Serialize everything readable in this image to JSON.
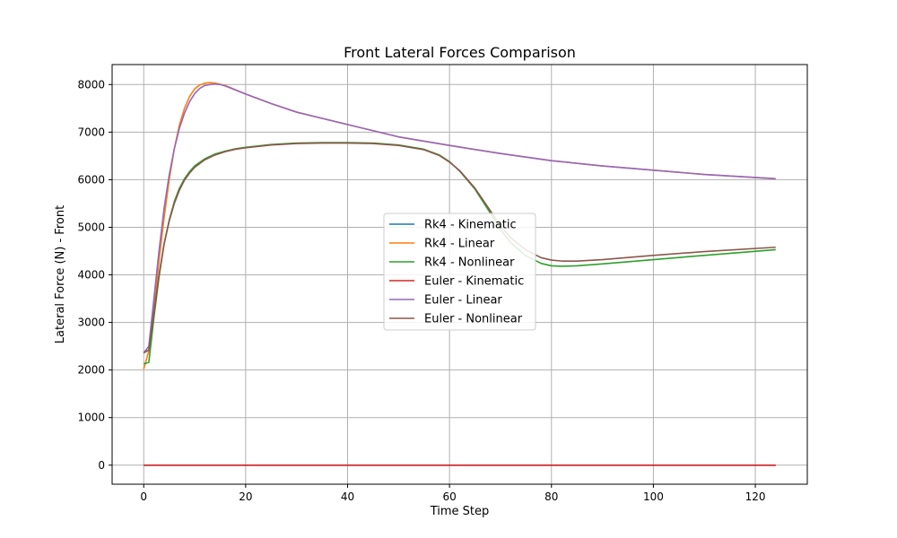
{
  "chart_data": {
    "type": "line",
    "title": "Front Lateral Forces Comparison",
    "xlabel": "Time Step",
    "ylabel": "Lateral Force (N) - Front",
    "xlim": [
      -6.2,
      130.2
    ],
    "ylim": [
      -400,
      8420
    ],
    "xticks": [
      0,
      20,
      40,
      60,
      80,
      100,
      120
    ],
    "yticks": [
      0,
      1000,
      2000,
      3000,
      4000,
      5000,
      6000,
      7000,
      8000
    ],
    "grid": true,
    "legend_position": "center",
    "series": [
      {
        "name": "Rk4 - Kinematic",
        "color": "#1f77b4",
        "x": [
          0,
          124
        ],
        "y": [
          0,
          0
        ]
      },
      {
        "name": "Rk4 - Linear",
        "color": "#ff7f0e",
        "x": [
          0,
          1,
          2,
          3,
          4,
          5,
          6,
          7,
          8,
          9,
          10,
          11,
          12,
          13,
          14,
          16,
          20,
          25,
          30,
          40,
          50,
          60,
          70,
          80,
          90,
          100,
          110,
          124
        ],
        "y": [
          2020,
          2400,
          3300,
          4300,
          5200,
          6000,
          6650,
          7150,
          7500,
          7750,
          7910,
          7990,
          8030,
          8040,
          8030,
          7980,
          7800,
          7600,
          7420,
          7160,
          6900,
          6720,
          6550,
          6400,
          6290,
          6200,
          6110,
          6020
        ]
      },
      {
        "name": "Rk4 - Nonlinear",
        "color": "#2ca02c",
        "x": [
          0,
          1,
          2,
          3,
          4,
          5,
          6,
          7,
          8,
          9,
          10,
          12,
          14,
          16,
          18,
          20,
          25,
          30,
          35,
          40,
          45,
          50,
          55,
          58,
          60,
          62,
          65,
          68,
          70,
          72,
          75,
          78,
          80,
          82,
          85,
          90,
          100,
          110,
          124
        ],
        "y": [
          2130,
          2160,
          3100,
          3950,
          4650,
          5150,
          5540,
          5820,
          6020,
          6170,
          6290,
          6440,
          6540,
          6600,
          6650,
          6680,
          6740,
          6770,
          6780,
          6780,
          6770,
          6730,
          6640,
          6520,
          6380,
          6180,
          5800,
          5300,
          4950,
          4680,
          4400,
          4240,
          4190,
          4180,
          4190,
          4230,
          4320,
          4410,
          4530
        ]
      },
      {
        "name": "Euler - Kinematic",
        "color": "#d62728",
        "x": [
          0,
          124
        ],
        "y": [
          0,
          0
        ]
      },
      {
        "name": "Euler - Linear",
        "color": "#9467bd",
        "x": [
          0,
          1,
          2,
          3,
          4,
          5,
          6,
          7,
          8,
          9,
          10,
          11,
          12,
          13,
          14,
          15,
          16,
          20,
          25,
          30,
          40,
          50,
          60,
          70,
          80,
          90,
          100,
          110,
          124
        ],
        "y": [
          2360,
          2500,
          3500,
          4500,
          5400,
          6100,
          6650,
          7080,
          7400,
          7640,
          7810,
          7920,
          7980,
          8000,
          8010,
          8000,
          7970,
          7800,
          7600,
          7420,
          7160,
          6900,
          6720,
          6550,
          6400,
          6290,
          6200,
          6110,
          6020
        ]
      },
      {
        "name": "Euler - Nonlinear",
        "color": "#8c564b",
        "x": [
          0,
          1,
          2,
          3,
          4,
          5,
          6,
          7,
          8,
          9,
          10,
          12,
          14,
          16,
          18,
          20,
          25,
          30,
          35,
          40,
          45,
          50,
          55,
          58,
          60,
          62,
          65,
          68,
          70,
          72,
          75,
          78,
          80,
          82,
          85,
          90,
          100,
          110,
          124
        ],
        "y": [
          2360,
          2420,
          3200,
          4000,
          4650,
          5130,
          5500,
          5780,
          5990,
          6140,
          6260,
          6420,
          6520,
          6590,
          6640,
          6670,
          6730,
          6760,
          6770,
          6770,
          6760,
          6720,
          6630,
          6510,
          6370,
          6190,
          5820,
          5350,
          5030,
          4780,
          4520,
          4360,
          4310,
          4290,
          4290,
          4320,
          4410,
          4490,
          4580
        ]
      }
    ]
  }
}
